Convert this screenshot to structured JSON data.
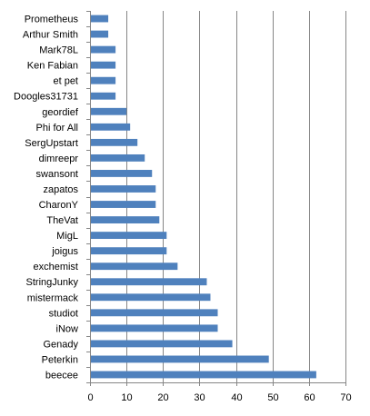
{
  "chart_data": {
    "type": "bar",
    "orientation": "horizontal",
    "title": "",
    "xlabel": "",
    "ylabel": "",
    "categories": [
      "Prometheus",
      "Arthur Smith",
      "Mark78L",
      "Ken Fabian",
      "et pet",
      "Doogles31731",
      "geordief",
      "Phi for All",
      "SergUpstart",
      "dimreepr",
      "swansont",
      "zapatos",
      "CharonY",
      "TheVat",
      "MigL",
      "joigus",
      "exchemist",
      "StringJunky",
      "mistermack",
      "studiot",
      "iNow",
      "Genady",
      "Peterkin",
      "beecee"
    ],
    "values": [
      5,
      5,
      7,
      7,
      7,
      7,
      10,
      11,
      13,
      15,
      17,
      18,
      18,
      19,
      21,
      21,
      24,
      32,
      33,
      35,
      35,
      39,
      49,
      62
    ],
    "xlim": [
      0,
      70
    ],
    "x_ticks": [
      "0",
      "10",
      "20",
      "30",
      "40",
      "50",
      "60",
      "70"
    ],
    "grid": "vertical",
    "legend": "none",
    "colors": {
      "bar": "#4f81bd",
      "grid": "#868686",
      "axis": "#868686"
    }
  }
}
